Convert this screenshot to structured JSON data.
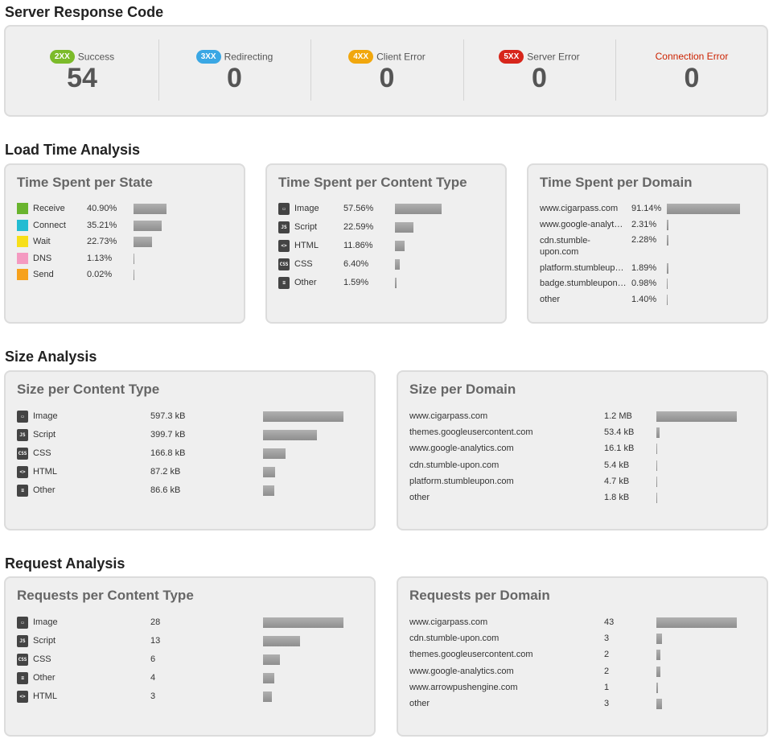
{
  "server_response": {
    "title": "Server Response Code",
    "codes": [
      {
        "badge": "2XX",
        "label": "Success",
        "value": "54",
        "badge_color": "#7cbb2a"
      },
      {
        "badge": "3XX",
        "label": "Redirecting",
        "value": "0",
        "badge_color": "#3aa7e4"
      },
      {
        "badge": "4XX",
        "label": "Client Error",
        "value": "0",
        "badge_color": "#f1a70d"
      },
      {
        "badge": "5XX",
        "label": "Server Error",
        "value": "0",
        "badge_color": "#d7261b"
      },
      {
        "badge": "",
        "label": "Connection Error",
        "value": "0",
        "label_color": "#cc2200"
      }
    ]
  },
  "load_time": {
    "title": "Load Time Analysis",
    "per_state": {
      "title": "Time Spent per State",
      "rows": [
        {
          "label": "Receive",
          "value": "40.90%",
          "fraction": 0.409,
          "color": "#69b42e"
        },
        {
          "label": "Connect",
          "value": "35.21%",
          "fraction": 0.3521,
          "color": "#23bcd2"
        },
        {
          "label": "Wait",
          "value": "22.73%",
          "fraction": 0.2273,
          "color": "#f7df1a"
        },
        {
          "label": "DNS",
          "value": "1.13%",
          "fraction": 0.0113,
          "color": "#f49ac1"
        },
        {
          "label": "Send",
          "value": "0.02%",
          "fraction": 0.0002,
          "color": "#f7a11c"
        }
      ]
    },
    "per_content_type": {
      "title": "Time Spent per Content Type",
      "rows": [
        {
          "label": "Image",
          "value": "57.56%",
          "fraction": 0.5756,
          "icon": "image-icon"
        },
        {
          "label": "Script",
          "value": "22.59%",
          "fraction": 0.2259,
          "icon": "script-icon"
        },
        {
          "label": "HTML",
          "value": "11.86%",
          "fraction": 0.1186,
          "icon": "html-icon"
        },
        {
          "label": "CSS",
          "value": "6.40%",
          "fraction": 0.064,
          "icon": "css-icon"
        },
        {
          "label": "Other",
          "value": "1.59%",
          "fraction": 0.0159,
          "icon": "other-icon"
        }
      ]
    },
    "per_domain": {
      "title": "Time Spent per Domain",
      "rows": [
        {
          "label": "www.cigarpass.com",
          "value": "91.14%",
          "fraction": 0.9114
        },
        {
          "label": "www.google-analyt…",
          "value": "2.31%",
          "fraction": 0.0231
        },
        {
          "label": "cdn.stumble-upon.com",
          "value": "2.28%",
          "fraction": 0.0228
        },
        {
          "label": "platform.stumbleup…",
          "value": "1.89%",
          "fraction": 0.0189
        },
        {
          "label": "badge.stumbleupon…",
          "value": "0.98%",
          "fraction": 0.0098
        },
        {
          "label": "other",
          "value": "1.40%",
          "fraction": 0.014
        }
      ]
    }
  },
  "size": {
    "title": "Size Analysis",
    "per_content_type": {
      "title": "Size per Content Type",
      "rows": [
        {
          "label": "Image",
          "value": "597.3 kB",
          "fraction": 1.0,
          "icon": "image-icon"
        },
        {
          "label": "Script",
          "value": "399.7 kB",
          "fraction": 0.669,
          "icon": "script-icon"
        },
        {
          "label": "CSS",
          "value": "166.8 kB",
          "fraction": 0.279,
          "icon": "css-icon"
        },
        {
          "label": "HTML",
          "value": "87.2 kB",
          "fraction": 0.146,
          "icon": "html-icon"
        },
        {
          "label": "Other",
          "value": "86.6 kB",
          "fraction": 0.145,
          "icon": "other-icon"
        }
      ]
    },
    "per_domain": {
      "title": "Size per Domain",
      "rows": [
        {
          "label": "www.cigarpass.com",
          "value": "1.2 MB",
          "fraction": 1.0
        },
        {
          "label": "themes.googleusercontent.com",
          "value": "53.4 kB",
          "fraction": 0.043
        },
        {
          "label": "www.google-analytics.com",
          "value": "16.1 kB",
          "fraction": 0.013
        },
        {
          "label": "cdn.stumble-upon.com",
          "value": "5.4 kB",
          "fraction": 0.0044
        },
        {
          "label": "platform.stumbleupon.com",
          "value": "4.7 kB",
          "fraction": 0.0038
        },
        {
          "label": "other",
          "value": "1.8 kB",
          "fraction": 0.0015
        }
      ]
    }
  },
  "requests": {
    "title": "Request Analysis",
    "per_content_type": {
      "title": "Requests per Content Type",
      "rows": [
        {
          "label": "Image",
          "value": "28",
          "fraction": 1.0,
          "icon": "image-icon"
        },
        {
          "label": "Script",
          "value": "13",
          "fraction": 0.464,
          "icon": "script-icon"
        },
        {
          "label": "CSS",
          "value": "6",
          "fraction": 0.214,
          "icon": "css-icon"
        },
        {
          "label": "Other",
          "value": "4",
          "fraction": 0.143,
          "icon": "other-icon"
        },
        {
          "label": "HTML",
          "value": "3",
          "fraction": 0.107,
          "icon": "html-icon"
        }
      ]
    },
    "per_domain": {
      "title": "Requests per Domain",
      "rows": [
        {
          "label": "www.cigarpass.com",
          "value": "43",
          "fraction": 1.0
        },
        {
          "label": "cdn.stumble-upon.com",
          "value": "3",
          "fraction": 0.07
        },
        {
          "label": "themes.googleusercontent.com",
          "value": "2",
          "fraction": 0.0465
        },
        {
          "label": "www.google-analytics.com",
          "value": "2",
          "fraction": 0.0465
        },
        {
          "label": "www.arrowpushengine.com",
          "value": "1",
          "fraction": 0.023
        },
        {
          "label": "other",
          "value": "3",
          "fraction": 0.07
        }
      ]
    }
  }
}
